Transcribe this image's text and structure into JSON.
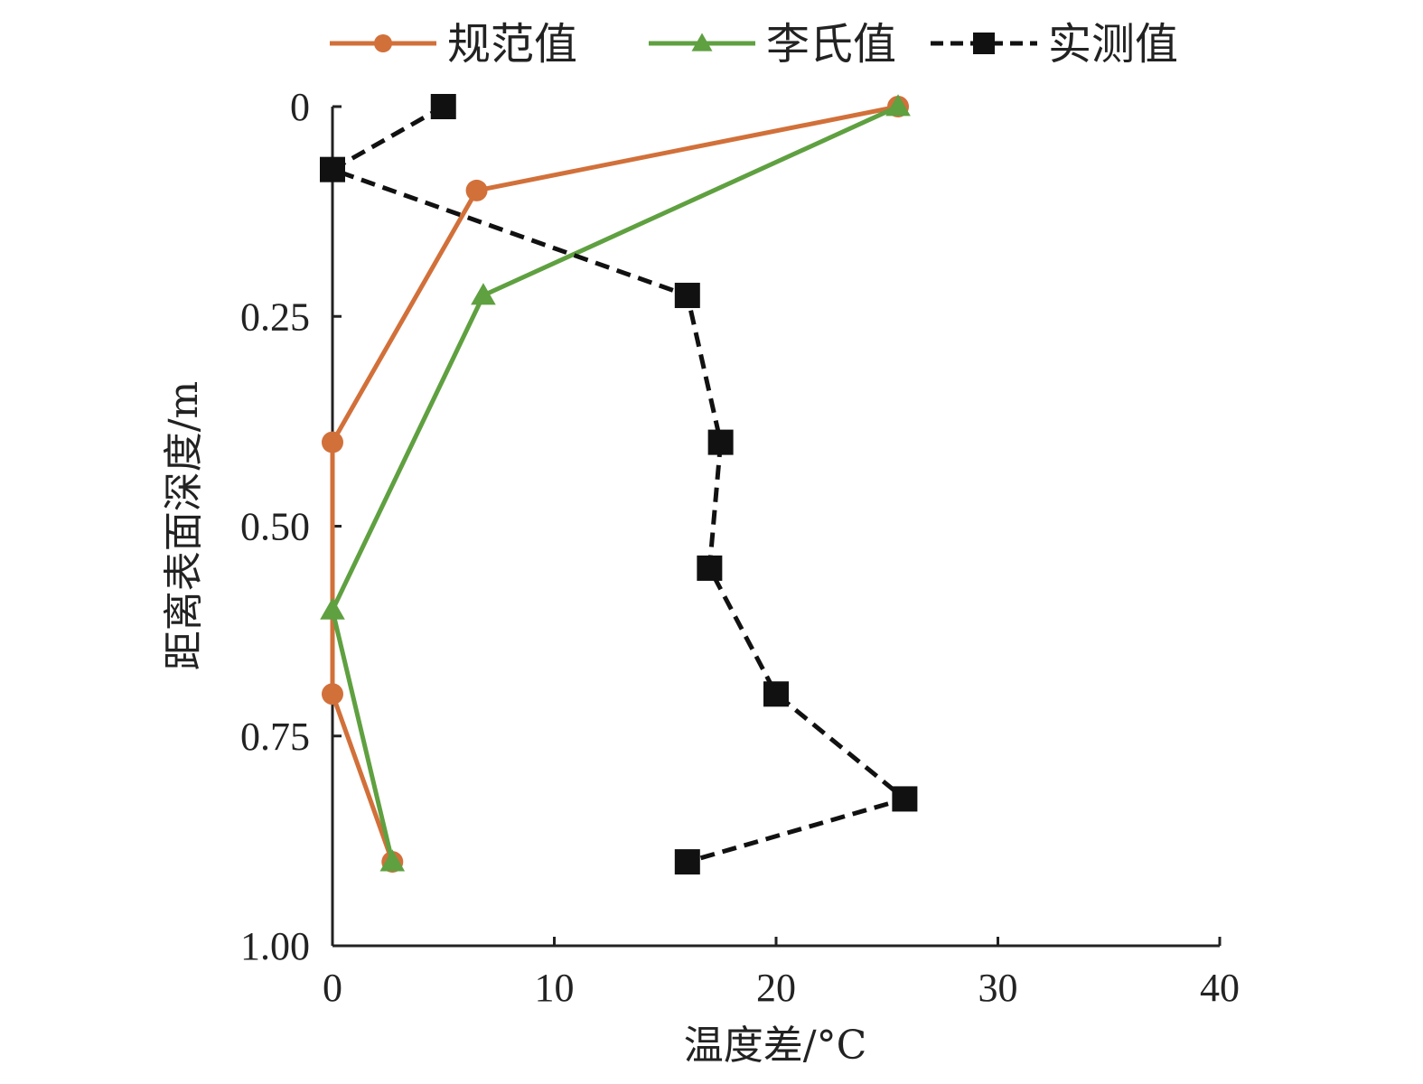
{
  "chart_data": {
    "type": "line",
    "title": "",
    "xlabel": "温度差/°C",
    "ylabel": "距离表面深度/m",
    "xlim": [
      0,
      40
    ],
    "ylim": [
      0,
      1.0
    ],
    "y_inverted": true,
    "x_ticks": [
      "0",
      "10",
      "20",
      "30",
      "40"
    ],
    "y_ticks": [
      "0",
      "0.25",
      "0.50",
      "0.75",
      "1.00"
    ],
    "grid": false,
    "legend_position": "top",
    "series": [
      {
        "name": "规范值",
        "color": "#D2703A",
        "marker": "circle",
        "dash": "solid",
        "points": [
          [
            25.5,
            0.0
          ],
          [
            6.5,
            0.1
          ],
          [
            0,
            0.4
          ],
          [
            0,
            0.7
          ],
          [
            2.7,
            0.9
          ]
        ]
      },
      {
        "name": "李氏值",
        "color": "#5FA040",
        "marker": "triangle",
        "dash": "solid",
        "points": [
          [
            25.5,
            0.0
          ],
          [
            6.8,
            0.225
          ],
          [
            0,
            0.6
          ],
          [
            2.7,
            0.9
          ]
        ]
      },
      {
        "name": "实测值",
        "color": "#111111",
        "marker": "square",
        "dash": "dashed",
        "points": [
          [
            5.0,
            0.0
          ],
          [
            0,
            0.075
          ],
          [
            16.0,
            0.225
          ],
          [
            17.5,
            0.4
          ],
          [
            17.0,
            0.55
          ],
          [
            20.0,
            0.7
          ],
          [
            25.8,
            0.825
          ],
          [
            16.0,
            0.9
          ]
        ]
      }
    ]
  }
}
